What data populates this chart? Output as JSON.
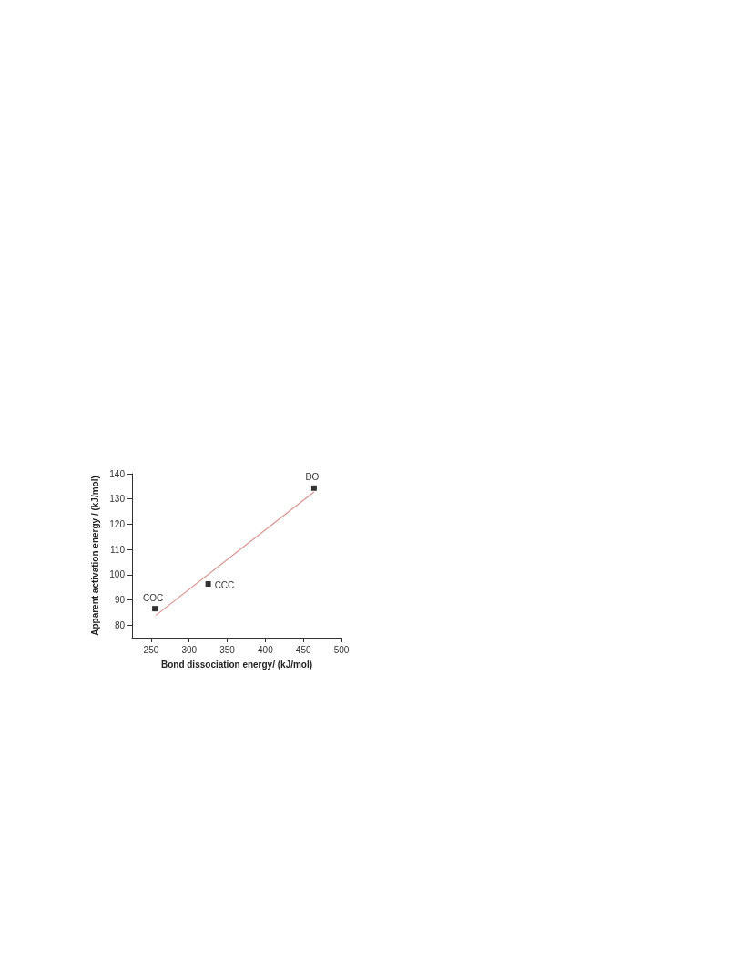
{
  "chart_data": {
    "type": "scatter",
    "xlabel": "Bond dissociation energy/ (kJ/mol)",
    "ylabel": "Apparent activation energy / (kJ/mol)",
    "xlim": [
      225,
      500
    ],
    "xticks": [
      250,
      300,
      350,
      400,
      450,
      500
    ],
    "ylim": [
      75,
      140
    ],
    "yticks": [
      80,
      90,
      100,
      110,
      120,
      130,
      140
    ],
    "grid": false,
    "series": [
      {
        "marker": "square",
        "color": "#000000",
        "x": [
          255,
          325,
          464
        ],
        "values": [
          86.5,
          96.3,
          134.3
        ]
      },
      {
        "type": "line",
        "color": "#d9928c",
        "x": [
          256,
          464
        ],
        "values": [
          83.8,
          132.8
        ]
      }
    ],
    "annotations": [
      {
        "text": "COC",
        "x": 255,
        "y": 86.5
      },
      {
        "text": "CCC",
        "x": 325,
        "y": 96.3
      },
      {
        "text": "DO",
        "x": 464,
        "y": 134.3
      }
    ]
  }
}
